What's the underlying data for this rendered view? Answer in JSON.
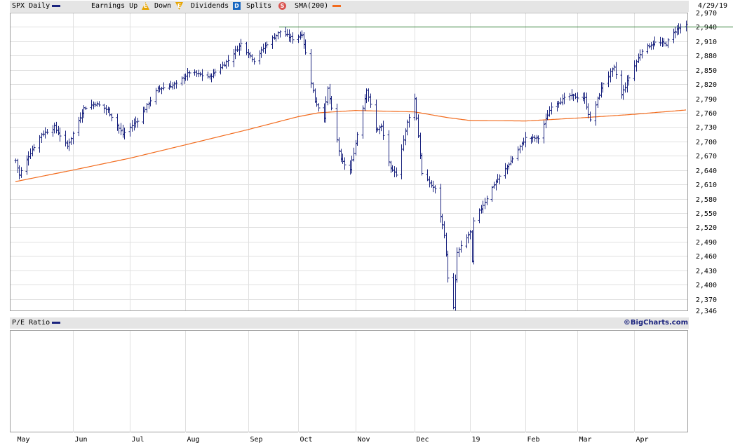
{
  "header": {
    "symbol_label": "SPX Daily",
    "earnings_label": "Earnings Up",
    "earnings_up_icon_letter": "E",
    "down_label": "Down",
    "earnings_down_icon_letter": "E",
    "dividends_label": "Dividends",
    "dividends_icon_letter": "D",
    "splits_label": "Splits",
    "splits_icon_letter": "S",
    "sma_label": "SMA(200)",
    "date": "4/29/19",
    "colors": {
      "price": "#1a237e",
      "sma": "#f26b1d",
      "highline": "#2e7d32",
      "earnings_up": "#e6a400",
      "dividends": "#1565c0",
      "splits": "#d9534f"
    }
  },
  "pe_panel": {
    "label": "P/E Ratio",
    "copyright": "©BigCharts.com"
  },
  "chart_data": {
    "type": "bar",
    "title": "SPX Daily",
    "xlabel": "",
    "ylabel": "",
    "x_tick_labels": [
      "May",
      "Jun",
      "Jul",
      "Aug",
      "Sep",
      "Oct",
      "Nov",
      "Dec",
      "19",
      "Feb",
      "Mar",
      "Apr"
    ],
    "y_tick_labels": [
      "2,970",
      "2,940",
      "2,910",
      "2,880",
      "2,850",
      "2,820",
      "2,790",
      "2,760",
      "2,730",
      "2,700",
      "2,670",
      "2,640",
      "2,610",
      "2,580",
      "2,550",
      "2,520",
      "2,490",
      "2,460",
      "2,430",
      "2,400",
      "2,370",
      "2,346"
    ],
    "ylim": [
      2346,
      2970
    ],
    "grid": true,
    "reference_line": 2941,
    "month_starts": [
      "2018-05-01",
      "2018-06-01",
      "2018-07-02",
      "2018-08-01",
      "2018-09-04",
      "2018-10-01",
      "2018-11-01",
      "2018-12-03",
      "2019-01-02",
      "2019-02-01",
      "2019-03-01",
      "2019-04-01"
    ],
    "price_series": {
      "name": "SPX Daily",
      "keypoints": [
        [
          "2018-05-01",
          2660
        ],
        [
          "2018-05-03",
          2630
        ],
        [
          "2018-05-08",
          2670
        ],
        [
          "2018-05-15",
          2715
        ],
        [
          "2018-05-22",
          2730
        ],
        [
          "2018-05-29",
          2690
        ],
        [
          "2018-06-07",
          2770
        ],
        [
          "2018-06-13",
          2780
        ],
        [
          "2018-06-20",
          2765
        ],
        [
          "2018-06-28",
          2715
        ],
        [
          "2018-07-06",
          2745
        ],
        [
          "2018-07-17",
          2810
        ],
        [
          "2018-07-27",
          2820
        ],
        [
          "2018-08-03",
          2845
        ],
        [
          "2018-08-14",
          2835
        ],
        [
          "2018-08-24",
          2870
        ],
        [
          "2018-08-31",
          2905
        ],
        [
          "2018-09-07",
          2870
        ],
        [
          "2018-09-14",
          2905
        ],
        [
          "2018-09-21",
          2930
        ],
        [
          "2018-09-28",
          2915
        ],
        [
          "2018-10-03",
          2925
        ],
        [
          "2018-10-10",
          2785
        ],
        [
          "2018-10-15",
          2752
        ],
        [
          "2018-10-17",
          2810
        ],
        [
          "2018-10-24",
          2660
        ],
        [
          "2018-10-29",
          2640
        ],
        [
          "2018-11-07",
          2810
        ],
        [
          "2018-11-12",
          2725
        ],
        [
          "2018-11-15",
          2730
        ],
        [
          "2018-11-20",
          2640
        ],
        [
          "2018-11-23",
          2632
        ],
        [
          "2018-11-29",
          2740
        ],
        [
          "2018-12-03",
          2790
        ],
        [
          "2018-12-07",
          2632
        ],
        [
          "2018-12-14",
          2599
        ],
        [
          "2018-12-19",
          2506
        ],
        [
          "2018-12-21",
          2416
        ],
        [
          "2018-12-24",
          2351
        ],
        [
          "2018-12-26",
          2467
        ],
        [
          "2019-01-02",
          2510
        ],
        [
          "2019-01-03",
          2447
        ],
        [
          "2019-01-04",
          2532
        ],
        [
          "2019-01-15",
          2610
        ],
        [
          "2019-01-25",
          2664
        ],
        [
          "2019-02-01",
          2707
        ],
        [
          "2019-02-08",
          2707
        ],
        [
          "2019-02-15",
          2775
        ],
        [
          "2019-02-25",
          2796
        ],
        [
          "2019-03-05",
          2790
        ],
        [
          "2019-03-08",
          2743
        ],
        [
          "2019-03-15",
          2822
        ],
        [
          "2019-03-21",
          2854
        ],
        [
          "2019-03-25",
          2798
        ],
        [
          "2019-03-29",
          2834
        ],
        [
          "2019-04-05",
          2892
        ],
        [
          "2019-04-12",
          2907
        ],
        [
          "2019-04-18",
          2905
        ],
        [
          "2019-04-23",
          2933
        ],
        [
          "2019-04-26",
          2940
        ],
        [
          "2019-04-29",
          2943
        ]
      ]
    },
    "sma_series": {
      "name": "SMA(200)",
      "keypoints": [
        [
          "2018-05-01",
          2616
        ],
        [
          "2018-06-01",
          2640
        ],
        [
          "2018-07-02",
          2665
        ],
        [
          "2018-08-01",
          2693
        ],
        [
          "2018-09-04",
          2725
        ],
        [
          "2018-10-01",
          2752
        ],
        [
          "2018-10-12",
          2760
        ],
        [
          "2018-11-01",
          2765
        ],
        [
          "2018-12-03",
          2762
        ],
        [
          "2018-12-21",
          2750
        ],
        [
          "2019-01-02",
          2744
        ],
        [
          "2019-02-01",
          2743
        ],
        [
          "2019-03-01",
          2749
        ],
        [
          "2019-04-01",
          2757
        ],
        [
          "2019-04-29",
          2766
        ]
      ]
    }
  }
}
